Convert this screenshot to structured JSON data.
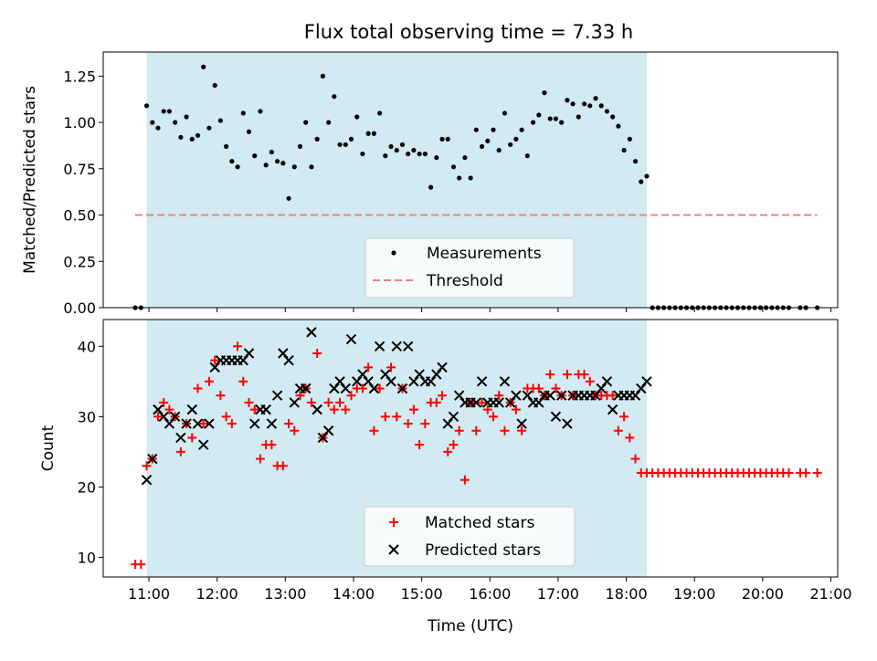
{
  "figure": {
    "title": "Flux total observing time = 7.33 h"
  },
  "chart_data": [
    {
      "type": "scatter",
      "ylabel": "Matched/Predicted stars",
      "xlim_hours": [
        10.33,
        21.1
      ],
      "ylim": [
        0,
        1.38
      ],
      "x_ticks": [
        "11:00",
        "12:00",
        "13:00",
        "14:00",
        "15:00",
        "16:00",
        "17:00",
        "18:00",
        "19:00",
        "20:00",
        "21:00"
      ],
      "y_ticks": [
        "0.00",
        "0.25",
        "0.50",
        "0.75",
        "1.00",
        "1.25"
      ],
      "shaded_span": [
        "10:58",
        "18:18"
      ],
      "shaded_color": "#add8e6",
      "legend_position": "lower center",
      "threshold": {
        "name": "Threshold",
        "y": 0.5,
        "x_start": "10:48",
        "x_end": "20:48",
        "color": "#f08080"
      },
      "series": [
        {
          "name": "Measurements",
          "marker": "dot",
          "color": "#000000",
          "x": [
            "10:48",
            "10:53",
            "10:58",
            "11:03",
            "11:08",
            "11:13",
            "11:18",
            "11:23",
            "11:28",
            "11:33",
            "11:38",
            "11:43",
            "11:48",
            "11:53",
            "11:58",
            "12:03",
            "12:08",
            "12:13",
            "12:18",
            "12:23",
            "12:28",
            "12:33",
            "12:38",
            "12:43",
            "12:48",
            "12:53",
            "12:58",
            "13:03",
            "13:08",
            "13:13",
            "13:18",
            "13:23",
            "13:28",
            "13:33",
            "13:38",
            "13:43",
            "13:48",
            "13:53",
            "13:58",
            "14:03",
            "14:08",
            "14:13",
            "14:18",
            "14:23",
            "14:28",
            "14:33",
            "14:38",
            "14:43",
            "14:48",
            "14:53",
            "14:58",
            "15:03",
            "15:08",
            "15:13",
            "15:18",
            "15:23",
            "15:28",
            "15:33",
            "15:38",
            "15:43",
            "15:48",
            "15:53",
            "15:58",
            "16:03",
            "16:08",
            "16:13",
            "16:18",
            "16:23",
            "16:28",
            "16:33",
            "16:38",
            "16:43",
            "16:48",
            "16:53",
            "16:58",
            "17:03",
            "17:08",
            "17:13",
            "17:18",
            "17:23",
            "17:28",
            "17:33",
            "17:38",
            "17:43",
            "17:48",
            "17:53",
            "17:58",
            "18:03",
            "18:08",
            "18:13",
            "18:18",
            "18:23",
            "18:28",
            "18:33",
            "18:38",
            "18:43",
            "18:48",
            "18:53",
            "18:58",
            "19:03",
            "19:08",
            "19:13",
            "19:18",
            "19:23",
            "19:28",
            "19:33",
            "19:38",
            "19:43",
            "19:48",
            "19:53",
            "19:58",
            "20:03",
            "20:08",
            "20:13",
            "20:18",
            "20:23",
            "20:33",
            "20:38",
            "20:48"
          ],
          "y": [
            0,
            0,
            1.09,
            1.0,
            0.97,
            1.06,
            1.06,
            1.0,
            0.92,
            1.03,
            0.91,
            0.93,
            1.3,
            0.97,
            1.2,
            1.01,
            0.87,
            0.79,
            0.76,
            1.05,
            0.95,
            0.82,
            1.06,
            0.77,
            0.84,
            0.79,
            0.78,
            0.59,
            0.76,
            0.87,
            1.0,
            0.76,
            0.91,
            1.25,
            1.0,
            1.14,
            0.88,
            0.88,
            0.91,
            1.03,
            0.83,
            0.94,
            0.94,
            1.05,
            0.82,
            0.87,
            0.85,
            0.88,
            0.83,
            0.85,
            0.83,
            0.83,
            0.65,
            0.81,
            0.91,
            0.91,
            0.76,
            0.7,
            0.81,
            0.7,
            0.96,
            0.87,
            0.9,
            0.96,
            0.85,
            1.05,
            0.88,
            0.91,
            0.96,
            0.82,
            1.0,
            1.04,
            1.16,
            1.02,
            1.02,
            1.0,
            1.12,
            1.1,
            1.03,
            1.1,
            1.09,
            1.13,
            1.09,
            1.06,
            1.03,
            0.98,
            0.85,
            0.91,
            0.79,
            0.68,
            0.71,
            0,
            0,
            0,
            0,
            0,
            0,
            0,
            0,
            0,
            0,
            0,
            0,
            0,
            0,
            0,
            0,
            0,
            0,
            0,
            0,
            0,
            0,
            0,
            0,
            0,
            0,
            0,
            0
          ]
        }
      ]
    },
    {
      "type": "scatter",
      "xlabel": "Time (UTC)",
      "ylabel": "Count",
      "xlim_hours": [
        10.33,
        21.1
      ],
      "ylim": [
        7.2,
        43.8
      ],
      "x_ticks": [
        "11:00",
        "12:00",
        "13:00",
        "14:00",
        "15:00",
        "16:00",
        "17:00",
        "18:00",
        "19:00",
        "20:00",
        "21:00"
      ],
      "y_ticks": [
        "10",
        "20",
        "30",
        "40"
      ],
      "shaded_span": [
        "10:58",
        "18:18"
      ],
      "shaded_color": "#add8e6",
      "legend_position": "lower center",
      "series": [
        {
          "name": "Matched stars",
          "marker": "plus",
          "color": "#ff0000",
          "x": [
            "10:48",
            "10:53",
            "10:58",
            "11:03",
            "11:08",
            "11:13",
            "11:18",
            "11:23",
            "11:28",
            "11:33",
            "11:38",
            "11:43",
            "11:48",
            "11:53",
            "11:58",
            "12:03",
            "12:08",
            "12:13",
            "12:18",
            "12:23",
            "12:28",
            "12:33",
            "12:38",
            "12:43",
            "12:48",
            "12:53",
            "12:58",
            "13:03",
            "13:08",
            "13:13",
            "13:18",
            "13:23",
            "13:28",
            "13:33",
            "13:38",
            "13:43",
            "13:48",
            "13:53",
            "13:58",
            "14:03",
            "14:08",
            "14:13",
            "14:18",
            "14:23",
            "14:28",
            "14:33",
            "14:38",
            "14:43",
            "14:48",
            "14:53",
            "14:58",
            "15:03",
            "15:08",
            "15:13",
            "15:18",
            "15:23",
            "15:28",
            "15:33",
            "15:38",
            "15:43",
            "15:48",
            "15:53",
            "15:58",
            "16:03",
            "16:08",
            "16:13",
            "16:18",
            "16:23",
            "16:28",
            "16:33",
            "16:38",
            "16:43",
            "16:48",
            "16:53",
            "16:58",
            "17:03",
            "17:08",
            "17:13",
            "17:18",
            "17:23",
            "17:28",
            "17:33",
            "17:38",
            "17:43",
            "17:48",
            "17:53",
            "17:58",
            "18:03",
            "18:08",
            "18:13",
            "18:18",
            "18:23",
            "18:28",
            "18:33",
            "18:38",
            "18:43",
            "18:48",
            "18:53",
            "18:58",
            "19:03",
            "19:08",
            "19:13",
            "19:18",
            "19:23",
            "19:28",
            "19:33",
            "19:38",
            "19:43",
            "19:48",
            "19:53",
            "19:58",
            "20:03",
            "20:08",
            "20:13",
            "20:18",
            "20:23",
            "20:33",
            "20:38",
            "20:48"
          ],
          "y": [
            9,
            9,
            23,
            24,
            30,
            32,
            31,
            30,
            25,
            29,
            27,
            34,
            29,
            35,
            38,
            33,
            30,
            29,
            40,
            35,
            32,
            31,
            24,
            26,
            26,
            23,
            23,
            29,
            28,
            33,
            34,
            32,
            39,
            27,
            32,
            31,
            32,
            31,
            33,
            34,
            34,
            37,
            28,
            34,
            30,
            37,
            30,
            34,
            29,
            31,
            26,
            29,
            32,
            32,
            33,
            25,
            26,
            28,
            21,
            32,
            28,
            32,
            31,
            30,
            33,
            28,
            32,
            31,
            28,
            34,
            34,
            34,
            33,
            36,
            34,
            33,
            36,
            33,
            36,
            36,
            35,
            33,
            33,
            33,
            33,
            28,
            30,
            27,
            24,
            22,
            22,
            22,
            22,
            22,
            22,
            22,
            22,
            22,
            22,
            22,
            22,
            22,
            22,
            22,
            22,
            22,
            22,
            22,
            22,
            22,
            22,
            22,
            22,
            22,
            22,
            22,
            22,
            22,
            22
          ]
        },
        {
          "name": "Predicted stars",
          "marker": "x",
          "color": "#000000",
          "x": [
            "10:58",
            "11:03",
            "11:08",
            "11:13",
            "11:18",
            "11:23",
            "11:28",
            "11:33",
            "11:38",
            "11:43",
            "11:48",
            "11:53",
            "11:58",
            "12:03",
            "12:08",
            "12:13",
            "12:18",
            "12:23",
            "12:28",
            "12:33",
            "12:38",
            "12:43",
            "12:48",
            "12:53",
            "12:58",
            "13:03",
            "13:08",
            "13:13",
            "13:18",
            "13:23",
            "13:28",
            "13:33",
            "13:38",
            "13:43",
            "13:48",
            "13:53",
            "13:58",
            "14:03",
            "14:08",
            "14:13",
            "14:18",
            "14:23",
            "14:28",
            "14:33",
            "14:38",
            "14:43",
            "14:48",
            "14:53",
            "14:58",
            "15:03",
            "15:08",
            "15:13",
            "15:18",
            "15:23",
            "15:28",
            "15:33",
            "15:38",
            "15:43",
            "15:48",
            "15:53",
            "15:58",
            "16:03",
            "16:08",
            "16:13",
            "16:18",
            "16:23",
            "16:28",
            "16:33",
            "16:38",
            "16:43",
            "16:48",
            "16:53",
            "16:58",
            "17:03",
            "17:08",
            "17:13",
            "17:18",
            "17:23",
            "17:28",
            "17:33",
            "17:38",
            "17:43",
            "17:48",
            "17:53",
            "17:58",
            "18:03",
            "18:08",
            "18:13",
            "18:18"
          ],
          "y": [
            21,
            24,
            31,
            30,
            29,
            30,
            27,
            29,
            31,
            29,
            26,
            29,
            37,
            38,
            38,
            38,
            38,
            38,
            39,
            29,
            31,
            31,
            29,
            33,
            39,
            38,
            32,
            34,
            34,
            42,
            31,
            27,
            28,
            34,
            35,
            34,
            41,
            35,
            36,
            35,
            34,
            40,
            36,
            35,
            40,
            34,
            40,
            35,
            36,
            35,
            35,
            36,
            37,
            29,
            30,
            33,
            32,
            32,
            32,
            35,
            32,
            32,
            32,
            35,
            32,
            33,
            29,
            33,
            32,
            32,
            33,
            33,
            30,
            33,
            29,
            33,
            33,
            33,
            33,
            33,
            34,
            35,
            31,
            33,
            33,
            33,
            33,
            34,
            35
          ]
        }
      ]
    }
  ]
}
